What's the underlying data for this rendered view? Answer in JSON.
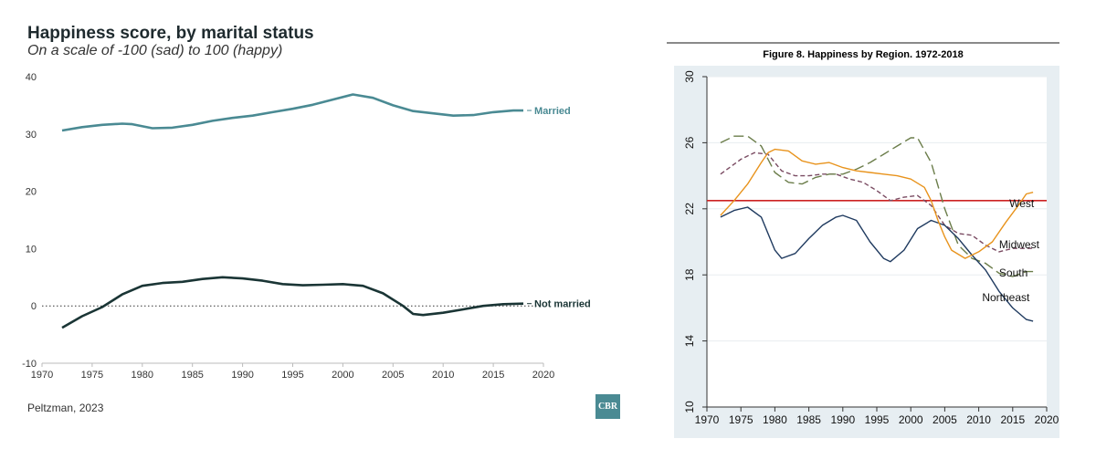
{
  "left": {
    "title": "Happiness score, by marital status",
    "subtitle": "On a scale of -100 (sad) to 100 (happy)",
    "source": "Peltzman, 2023",
    "logo_text": "CBR"
  },
  "right": {
    "title": "Figure 8.  Happiness by Region. 1972-2018"
  },
  "chart_data": [
    {
      "type": "line",
      "title": "Happiness score, by marital status",
      "subtitle": "On a scale of -100 (sad) to 100 (happy)",
      "xlim": [
        1970,
        2020
      ],
      "ylim": [
        -10,
        40
      ],
      "xticks": [
        1970,
        1975,
        1980,
        1985,
        1990,
        1995,
        2000,
        2005,
        2010,
        2015,
        2020
      ],
      "yticks": [
        -10,
        0,
        10,
        20,
        30,
        40
      ],
      "reference_line": {
        "y": 0,
        "style": "dotted"
      },
      "series": [
        {
          "name": "Married",
          "color": "#4a8a93",
          "x": [
            1972,
            1974,
            1976,
            1978,
            1979,
            1981,
            1983,
            1985,
            1987,
            1989,
            1991,
            1993,
            1995,
            1997,
            1999,
            2001,
            2003,
            2005,
            2007,
            2009,
            2011,
            2013,
            2015,
            2017,
            2018
          ],
          "values": [
            30.6,
            31.2,
            31.6,
            31.8,
            31.7,
            31.0,
            31.1,
            31.6,
            32.3,
            32.8,
            33.2,
            33.8,
            34.4,
            35.1,
            36.0,
            36.9,
            36.3,
            35.0,
            34.0,
            33.6,
            33.2,
            33.3,
            33.8,
            34.1,
            34.1
          ]
        },
        {
          "name": "Not married",
          "color": "#1a3535",
          "x": [
            1972,
            1974,
            1976,
            1978,
            1980,
            1982,
            1984,
            1986,
            1988,
            1990,
            1992,
            1994,
            1996,
            1998,
            2000,
            2002,
            2004,
            2006,
            2007,
            2008,
            2010,
            2012,
            2014,
            2016,
            2018
          ],
          "values": [
            -3.8,
            -1.8,
            -0.2,
            2.0,
            3.5,
            4.0,
            4.2,
            4.7,
            5.0,
            4.8,
            4.4,
            3.8,
            3.6,
            3.7,
            3.8,
            3.5,
            2.2,
            0.0,
            -1.4,
            -1.6,
            -1.2,
            -0.6,
            0.0,
            0.3,
            0.4
          ]
        }
      ]
    },
    {
      "type": "line",
      "title": "Figure 8.  Happiness by Region. 1972-2018",
      "xlim": [
        1970,
        2020
      ],
      "ylim": [
        10,
        30
      ],
      "xticks": [
        1970,
        1975,
        1980,
        1985,
        1990,
        1995,
        2000,
        2005,
        2010,
        2015,
        2020
      ],
      "yticks": [
        10,
        14,
        18,
        22,
        26,
        30
      ],
      "grid": true,
      "series": [
        {
          "name": "West",
          "color": "#cc2222",
          "style": "solid",
          "x": [
            1970,
            2020
          ],
          "values": [
            22.5,
            22.5
          ]
        },
        {
          "name": "Midwest",
          "color": "#7a4b62",
          "style": "dashed",
          "x": [
            1972,
            1975,
            1977,
            1979,
            1981,
            1983,
            1985,
            1987,
            1989,
            1991,
            1993,
            1995,
            1997,
            1999,
            2001,
            2003,
            2005,
            2007,
            2009,
            2011,
            2013,
            2015,
            2017,
            2018
          ],
          "values": [
            24.1,
            25.0,
            25.4,
            25.3,
            24.3,
            24.0,
            24.0,
            24.1,
            24.1,
            23.8,
            23.6,
            23.1,
            22.5,
            22.7,
            22.8,
            22.2,
            21.0,
            20.5,
            20.4,
            19.8,
            19.4,
            19.6,
            19.6,
            19.6
          ]
        },
        {
          "name": "South",
          "color": "#6b7d4a",
          "style": "longdash",
          "x": [
            1972,
            1974,
            1976,
            1978,
            1980,
            1982,
            1984,
            1986,
            1988,
            1990,
            1992,
            1994,
            1996,
            1998,
            2000,
            2001,
            2003,
            2005,
            2007,
            2009,
            2011,
            2013,
            2015,
            2017,
            2018
          ],
          "values": [
            26.0,
            26.4,
            26.4,
            25.8,
            24.2,
            23.6,
            23.5,
            23.9,
            24.1,
            24.1,
            24.4,
            24.8,
            25.3,
            25.8,
            26.3,
            26.3,
            24.8,
            22.0,
            19.8,
            19.0,
            18.7,
            18.1,
            17.9,
            18.2,
            18.2
          ]
        },
        {
          "name": "Northeast",
          "color": "#1f3a5f",
          "style": "solid",
          "x": [
            1972,
            1974,
            1976,
            1978,
            1980,
            1981,
            1983,
            1985,
            1987,
            1989,
            1990,
            1992,
            1994,
            1996,
            1997,
            1999,
            2001,
            2003,
            2005,
            2007,
            2009,
            2011,
            2013,
            2015,
            2017,
            2018
          ],
          "values": [
            21.5,
            21.9,
            22.1,
            21.5,
            19.5,
            19.0,
            19.3,
            20.2,
            21.0,
            21.5,
            21.6,
            21.3,
            20.0,
            19.0,
            18.8,
            19.5,
            20.8,
            21.3,
            21.0,
            20.2,
            19.2,
            18.3,
            17.0,
            16.0,
            15.3,
            15.2
          ]
        },
        {
          "name": "",
          "color": "#e8931c",
          "style": "solid",
          "x": [
            1972,
            1974,
            1976,
            1978,
            1979,
            1980,
            1982,
            1984,
            1986,
            1988,
            1990,
            1992,
            1994,
            1996,
            1998,
            2000,
            2002,
            2003,
            2004,
            2005,
            2006,
            2008,
            2010,
            2012,
            2014,
            2016,
            2017,
            2018
          ],
          "values": [
            21.6,
            22.5,
            23.5,
            24.8,
            25.4,
            25.6,
            25.5,
            24.9,
            24.7,
            24.8,
            24.5,
            24.3,
            24.2,
            24.1,
            24.0,
            23.8,
            23.3,
            22.5,
            21.3,
            20.3,
            19.5,
            19.0,
            19.4,
            20.0,
            21.2,
            22.3,
            22.9,
            23.0
          ]
        }
      ]
    }
  ]
}
